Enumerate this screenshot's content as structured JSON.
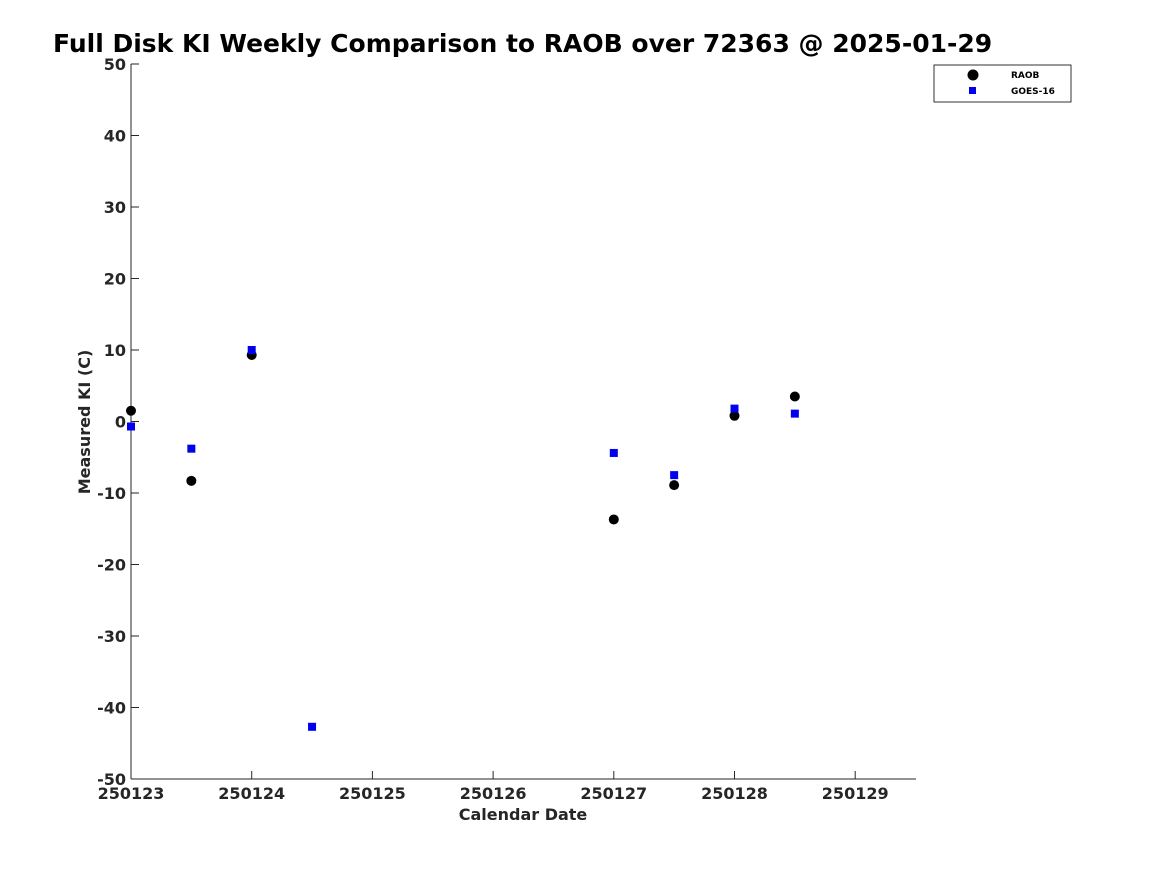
{
  "chart_data": {
    "type": "scatter",
    "title": "Full Disk KI Weekly Comparison to RAOB over 72363 @ 2025-01-29",
    "xlabel": "Calendar Date",
    "ylabel": "Measured KI (C)",
    "x_tick_labels": [
      "250123",
      "250124",
      "250125",
      "250126",
      "250127",
      "250128",
      "250129"
    ],
    "y_ticks": [
      50,
      40,
      30,
      20,
      10,
      0,
      -10,
      -20,
      -30,
      -40,
      -50
    ],
    "ylim": [
      -50,
      50
    ],
    "xlim_days": [
      0,
      6.5
    ],
    "grid": false,
    "legend_position": "top-right",
    "series": [
      {
        "name": "RAOB",
        "marker": "circle",
        "color": "#000000",
        "points": [
          {
            "x": "250123 00Z",
            "y": 1.5
          },
          {
            "x": "250123 12Z",
            "y": -8.3
          },
          {
            "x": "250124 00Z",
            "y": 9.3
          },
          {
            "x": "250127 00Z",
            "y": -13.7
          },
          {
            "x": "250127 12Z",
            "y": -8.9
          },
          {
            "x": "250128 00Z",
            "y": 0.8
          },
          {
            "x": "250128 12Z",
            "y": 3.5
          }
        ]
      },
      {
        "name": "GOES-16",
        "marker": "square",
        "color": "#0000ee",
        "points": [
          {
            "x": "250123 00Z",
            "y": -0.7
          },
          {
            "x": "250123 12Z",
            "y": -3.8
          },
          {
            "x": "250124 00Z",
            "y": 10.0
          },
          {
            "x": "250124 12Z",
            "y": -42.7
          },
          {
            "x": "250127 00Z",
            "y": -4.4
          },
          {
            "x": "250127 12Z",
            "y": -7.5
          },
          {
            "x": "250128 00Z",
            "y": 1.8
          },
          {
            "x": "250128 12Z",
            "y": 1.1
          }
        ]
      }
    ]
  }
}
